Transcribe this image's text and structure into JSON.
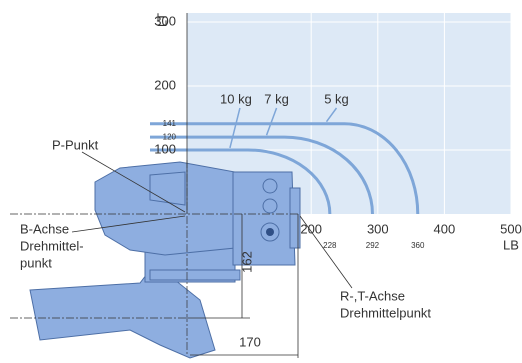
{
  "diagram": {
    "y_axis": {
      "label": "LT",
      "lim": [
        0,
        314
      ],
      "ticks": [
        100,
        200,
        300
      ]
    },
    "x_axis": {
      "label": "LB",
      "lim": [
        0,
        500
      ],
      "ticks": [
        200,
        300,
        400,
        500
      ]
    },
    "curves": [
      {
        "name": "10 kg",
        "height": 100,
        "flat_end": 105,
        "end": 228
      },
      {
        "name": "7 kg",
        "height": 120,
        "flat_end": 160,
        "end": 292
      },
      {
        "name": "5 kg",
        "height": 141,
        "flat_end": 250,
        "end": 360
      }
    ],
    "callouts": {
      "p_point": "P-Punkt",
      "b_axis": [
        "B-Achse",
        "Drehmittel-",
        "punkt"
      ],
      "rt_axis": [
        "R-,T-Achse",
        "Drehmittelpunkt"
      ]
    },
    "dimensions": {
      "vertical": "162",
      "horizontal": "170"
    }
  }
}
